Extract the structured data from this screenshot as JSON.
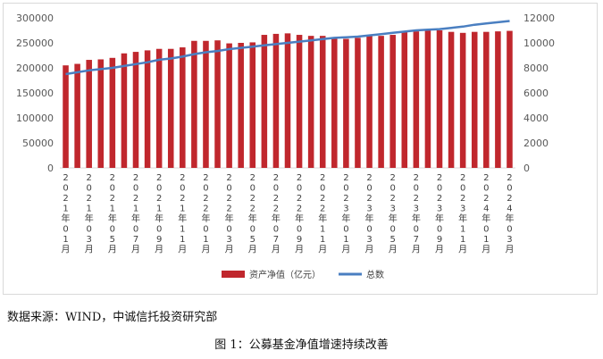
{
  "chart_data": {
    "type": "bar",
    "categories": [
      "2021年01月",
      "2021年02月",
      "2021年03月",
      "2021年04月",
      "2021年05月",
      "2021年06月",
      "2021年07月",
      "2021年08月",
      "2021年09月",
      "2021年10月",
      "2021年11月",
      "2021年12月",
      "2022年01月",
      "2022年02月",
      "2022年03月",
      "2022年04月",
      "2022年05月",
      "2022年06月",
      "2022年07月",
      "2022年08月",
      "2022年09月",
      "2022年10月",
      "2022年11月",
      "2022年12月",
      "2023年01月",
      "2023年02月",
      "2023年03月",
      "2023年04月",
      "2023年05月",
      "2023年06月",
      "2023年07月",
      "2023年08月",
      "2023年09月",
      "2023年10月",
      "2023年11月",
      "2023年12月",
      "2024年01月",
      "2024年02月",
      "2024年03月"
    ],
    "tick_labels": [
      "2021年01月",
      "2021年03月",
      "2021年05月",
      "2021年07月",
      "2021年09月",
      "2021年11月",
      "2022年01月",
      "2022年03月",
      "2022年05月",
      "2022年07月",
      "2022年09月",
      "2022年11月",
      "2023年01月",
      "2023年03月",
      "2023年05月",
      "2023年07月",
      "2023年09月",
      "2023年11月",
      "2024年01月",
      "2024年03月"
    ],
    "series": [
      {
        "name": "资产净值（亿元）",
        "type": "bar",
        "axis": "left",
        "color": "#c0272d",
        "values": [
          205000,
          208000,
          216000,
          217000,
          220000,
          229000,
          232000,
          235000,
          238000,
          238000,
          241000,
          254000,
          254000,
          255000,
          249000,
          250000,
          251000,
          266000,
          268000,
          269000,
          266000,
          264000,
          264000,
          258000,
          258000,
          260000,
          264000,
          264000,
          266000,
          272000,
          273000,
          276000,
          275000,
          272000,
          270000,
          272000,
          272000,
          273000,
          274000
        ]
      },
      {
        "name": "总数",
        "type": "line",
        "axis": "right",
        "color": "#4a7fc1",
        "values": [
          7500,
          7650,
          7800,
          7900,
          8000,
          8150,
          8300,
          8450,
          8650,
          8750,
          8900,
          9100,
          9250,
          9350,
          9500,
          9600,
          9700,
          9800,
          9900,
          10000,
          10100,
          10200,
          10300,
          10400,
          10450,
          10500,
          10600,
          10700,
          10800,
          10900,
          11000,
          11050,
          11100,
          11200,
          11300,
          11450,
          11550,
          11650,
          11750
        ]
      }
    ],
    "y_left": {
      "min": 0,
      "max": 300000,
      "ticks": [
        "300000",
        "250000",
        "200000",
        "150000",
        "100000",
        "50000",
        "0"
      ]
    },
    "y_right": {
      "min": 0,
      "max": 12000,
      "ticks": [
        "12000",
        "10000",
        "8000",
        "6000",
        "4000",
        "2000",
        "0"
      ]
    },
    "grid": false,
    "legend_position": "bottom"
  },
  "footer": {
    "source": "数据来源：WIND，中诚信托投资研究部",
    "caption": "图 1：公募基金净值增速持续改善"
  }
}
